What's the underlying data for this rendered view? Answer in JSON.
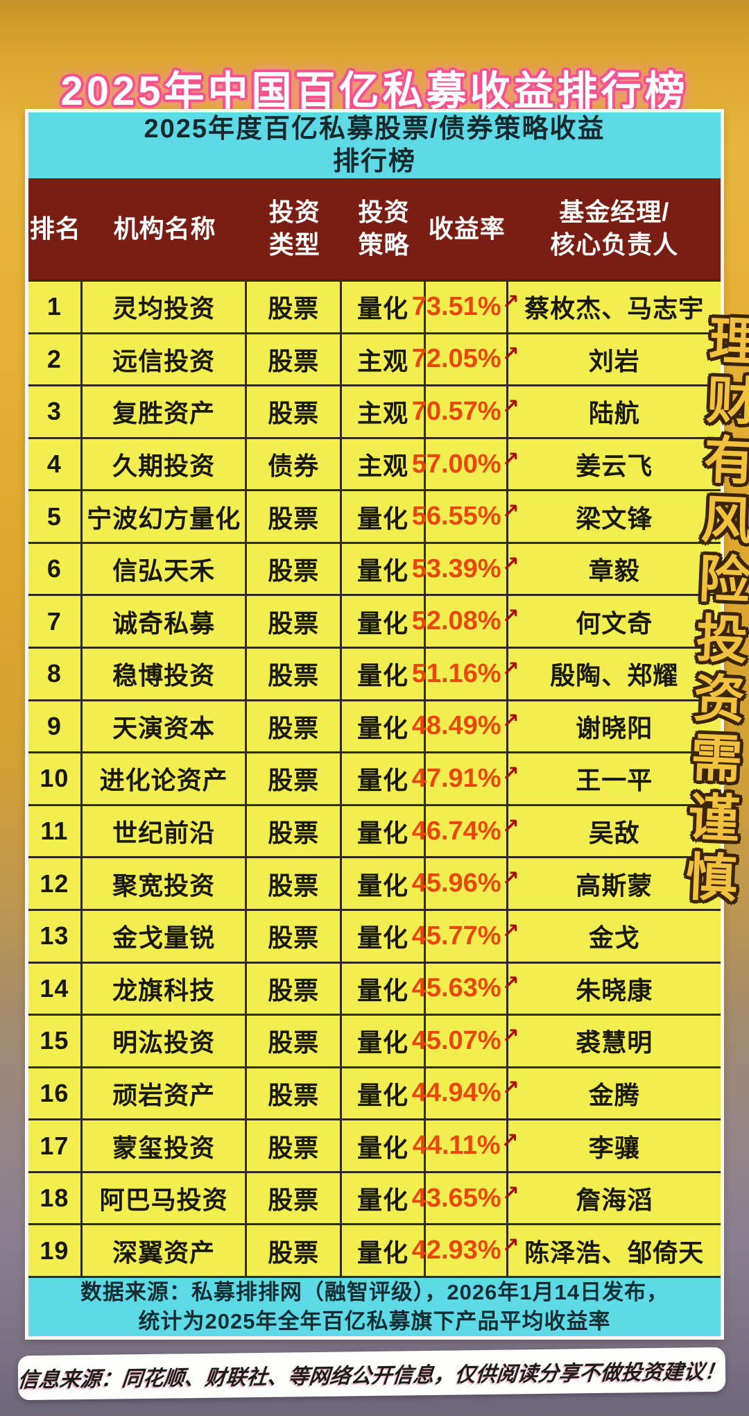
{
  "page": {
    "title": "2025年中国百亿私募收益排行榜",
    "slogan_vertical": "理财有风险投资需谨慎",
    "disclaimer": "信息来源：同花顺、财联社、等网络公开信息，仅供阅读分享不做投资建议！"
  },
  "table": {
    "subtitle_line1": "2025年度百亿私募股票/债券策略收益",
    "subtitle_line2": "排行榜",
    "column_headers": [
      "排名",
      "机构名称",
      "投资\n类型",
      "投资\n策略",
      "收益率",
      "基金经理/\n核心负责人"
    ],
    "up_arrow": "↗",
    "footer_line1": "数据来源：私募排排网（融智评级），2026年1月14日发布，",
    "footer_line2": "统计为2025年全年百亿私募旗下产品平均收益率"
  },
  "colors": {
    "title_pink": "#f4538f",
    "cyan_band": "#5ed9e6",
    "header_maroon": "#7a1e14",
    "row_yellow": "#f3ee50",
    "return_orange": "#e8470e",
    "arrow_red": "#a61104",
    "slogan_gold": "#f2c13d",
    "bg_gold": "#e4af34",
    "bg_purple": "#7d7486"
  },
  "chart_data": {
    "type": "table",
    "title": "2025年中国百亿私募收益排行榜",
    "subtitle": "2025年度百亿私募股票/债券策略收益排行榜",
    "columns": [
      "排名",
      "机构名称",
      "投资类型",
      "投资策略",
      "收益率",
      "基金经理/核心负责人"
    ],
    "rows": [
      [
        1,
        "灵均投资",
        "股票",
        "量化",
        "73.51%",
        "蔡枚杰、马志宇"
      ],
      [
        2,
        "远信投资",
        "股票",
        "主观",
        "72.05%",
        "刘岩"
      ],
      [
        3,
        "复胜资产",
        "股票",
        "主观",
        "70.57%",
        "陆航"
      ],
      [
        4,
        "久期投资",
        "债券",
        "主观",
        "57.00%",
        "姜云飞"
      ],
      [
        5,
        "宁波幻方量化",
        "股票",
        "量化",
        "56.55%",
        "梁文锋"
      ],
      [
        6,
        "信弘天禾",
        "股票",
        "量化",
        "53.39%",
        "章毅"
      ],
      [
        7,
        "诚奇私募",
        "股票",
        "量化",
        "52.08%",
        "何文奇"
      ],
      [
        8,
        "稳博投资",
        "股票",
        "量化",
        "51.16%",
        "殷陶、郑耀"
      ],
      [
        9,
        "天演资本",
        "股票",
        "量化",
        "48.49%",
        "谢晓阳"
      ],
      [
        10,
        "进化论资产",
        "股票",
        "量化",
        "47.91%",
        "王一平"
      ],
      [
        11,
        "世纪前沿",
        "股票",
        "量化",
        "46.74%",
        "吴敌"
      ],
      [
        12,
        "聚宽投资",
        "股票",
        "量化",
        "45.96%",
        "高斯蒙"
      ],
      [
        13,
        "金戈量锐",
        "股票",
        "量化",
        "45.77%",
        "金戈"
      ],
      [
        14,
        "龙旗科技",
        "股票",
        "量化",
        "45.63%",
        "朱晓康"
      ],
      [
        15,
        "明汯投资",
        "股票",
        "量化",
        "45.07%",
        "裘慧明"
      ],
      [
        16,
        "顽岩资产",
        "股票",
        "量化",
        "44.94%",
        "金腾"
      ],
      [
        17,
        "蒙玺投资",
        "股票",
        "量化",
        "44.11%",
        "李骧"
      ],
      [
        18,
        "阿巴马投资",
        "股票",
        "量化",
        "43.65%",
        "詹海滔"
      ],
      [
        19,
        "深翼资产",
        "股票",
        "量化",
        "42.93%",
        "陈泽浩、邹倚天"
      ]
    ],
    "returns_numeric": [
      73.51,
      72.05,
      70.57,
      57.0,
      56.55,
      53.39,
      52.08,
      51.16,
      48.49,
      47.91,
      46.74,
      45.96,
      45.77,
      45.63,
      45.07,
      44.94,
      44.11,
      43.65,
      42.93
    ],
    "layout_hints": {
      "grid": true,
      "header_position": "top",
      "rank_order": "descending_return"
    }
  }
}
